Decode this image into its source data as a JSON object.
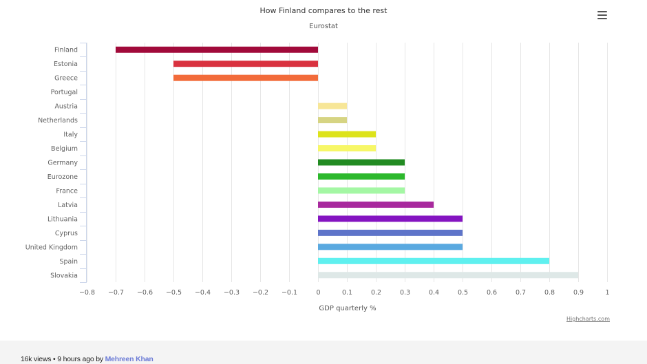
{
  "chart_data": {
    "type": "bar",
    "orientation": "horizontal",
    "title": "How Finland compares to the rest",
    "subtitle": "Eurostat",
    "xlabel": "GDP quarterly %",
    "ylabel": "",
    "xlim": [
      -0.8,
      1
    ],
    "grid": true,
    "legend": "none",
    "x_ticks": [
      "−0.8",
      "−0.7",
      "−0.6",
      "−0.5",
      "−0.4",
      "−0.3",
      "−0.2",
      "−0.1",
      "0",
      "0.1",
      "0.2",
      "0.3",
      "0.4",
      "0.5",
      "0.6",
      "0.7",
      "0.8",
      "0.9",
      "1"
    ],
    "x_tick_values": [
      -0.8,
      -0.7,
      -0.6,
      -0.5,
      -0.4,
      -0.3,
      -0.2,
      -0.1,
      0,
      0.1,
      0.2,
      0.3,
      0.4,
      0.5,
      0.6,
      0.7,
      0.8,
      0.9,
      1
    ],
    "categories": [
      "Finland",
      "Estonia",
      "Greece",
      "Portugal",
      "Austria",
      "Netherlands",
      "Italy",
      "Belgium",
      "Germany",
      "Eurozone",
      "France",
      "Latvia",
      "Lithuania",
      "Cyprus",
      "United Kingdom",
      "Spain",
      "Slovakia"
    ],
    "values": [
      -0.7,
      -0.5,
      -0.5,
      0,
      0.1,
      0.1,
      0.2,
      0.2,
      0.3,
      0.3,
      0.3,
      0.4,
      0.5,
      0.5,
      0.5,
      0.8,
      0.9
    ],
    "colors": [
      "#a10a3a",
      "#d9323f",
      "#f26b3a",
      "#cccccc",
      "#f7e697",
      "#d6d483",
      "#dde31b",
      "#f7f767",
      "#228b22",
      "#2cb82c",
      "#a4f7a4",
      "#a8299d",
      "#8414c1",
      "#5e74c9",
      "#5aa9e0",
      "#5ff0ef",
      "#dee8e7"
    ]
  },
  "credits": "Highcharts.com",
  "menu": {
    "icon": "hamburger-menu-icon"
  },
  "footer": {
    "meta": "16k views • 9 hours ago by ",
    "author": "Mehreen Khan"
  }
}
